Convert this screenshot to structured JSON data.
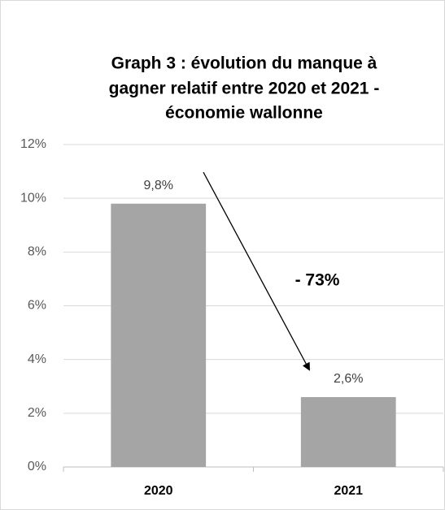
{
  "chart_data": {
    "type": "bar",
    "title": [
      "Graph 3 : évolution du manque à",
      "gagner relatif entre 2020 et 2021 -",
      "économie wallonne"
    ],
    "categories": [
      "2020",
      "2021"
    ],
    "values": [
      9.8,
      2.6
    ],
    "value_labels": [
      "9,8%",
      "2,6%"
    ],
    "color": "#a5a5a5",
    "annotation": "- 73%",
    "ylim": [
      0,
      12
    ],
    "yticks": [
      {
        "value": 0,
        "label": "0%"
      },
      {
        "value": 2,
        "label": "2%"
      },
      {
        "value": 4,
        "label": "4%"
      },
      {
        "value": 6,
        "label": "6%"
      },
      {
        "value": 8,
        "label": "8%"
      },
      {
        "value": 10,
        "label": "10%"
      },
      {
        "value": 12,
        "label": "12%"
      }
    ],
    "grid": true
  }
}
